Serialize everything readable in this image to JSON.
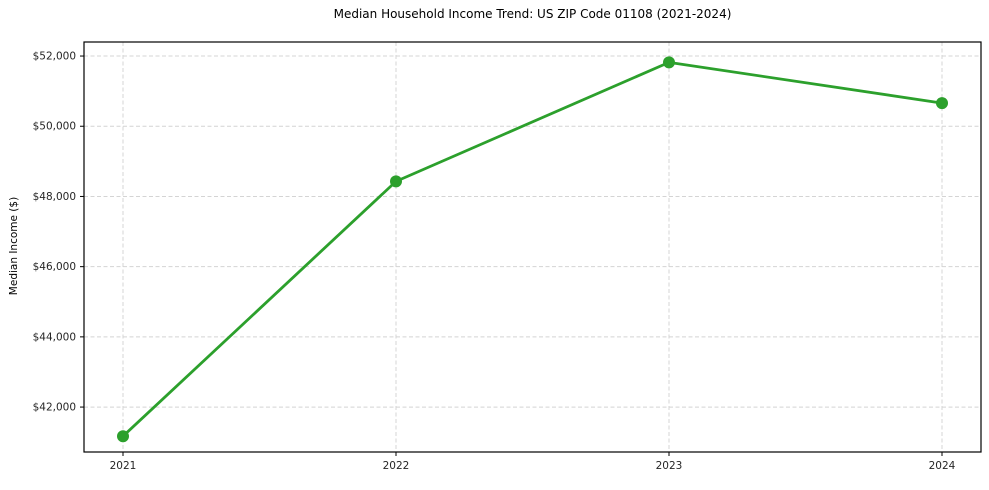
{
  "chart_data": {
    "type": "line",
    "title": "Median Household Income Trend: US ZIP Code 01108 (2021-2024)",
    "xlabel": "",
    "ylabel": "Median Income ($)",
    "categories": [
      "2021",
      "2022",
      "2023",
      "2024"
    ],
    "series": [
      {
        "name": "Median Household Income",
        "values": [
          41170,
          48430,
          51820,
          50660
        ],
        "color": "#2ca02c",
        "marker": "circle"
      }
    ],
    "yticks": [
      42000,
      44000,
      46000,
      48000,
      50000,
      52000
    ],
    "ytick_labels": [
      "$42,000",
      "$44,000",
      "$46,000",
      "$48,000",
      "$50,000",
      "$52,000"
    ],
    "ylim": [
      40720,
      52400
    ],
    "grid": true,
    "grid_style": "dashed",
    "grid_color": "#d4d4d4",
    "spine_color": "#000000",
    "background": "#ffffff",
    "legend_position": "none"
  }
}
